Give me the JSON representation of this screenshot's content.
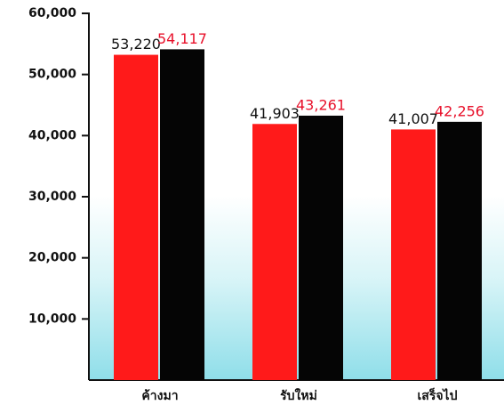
{
  "chart_data": {
    "type": "bar",
    "categories": [
      "ค้างมา",
      "รับใหม่",
      "เสร็จไป"
    ],
    "series": [
      {
        "color": "#ff1a1a",
        "label_color": "#111111",
        "values": [
          53220,
          41903,
          41007
        ],
        "value_labels": [
          "53,220",
          "41,903",
          "41,007"
        ]
      },
      {
        "color": "#050505",
        "label_color": "#e8102a",
        "values": [
          54117,
          43261,
          42256
        ],
        "value_labels": [
          "54,117",
          "43,261",
          "42,256"
        ]
      }
    ],
    "ylim": [
      0,
      60000
    ],
    "yticks": [
      {
        "value": 10000,
        "label": "10,000"
      },
      {
        "value": 20000,
        "label": "20,000"
      },
      {
        "value": 30000,
        "label": "30,000"
      },
      {
        "value": 40000,
        "label": "40,000"
      },
      {
        "value": 50000,
        "label": "50,000"
      },
      {
        "value": 60000,
        "label": "60,000"
      }
    ]
  }
}
